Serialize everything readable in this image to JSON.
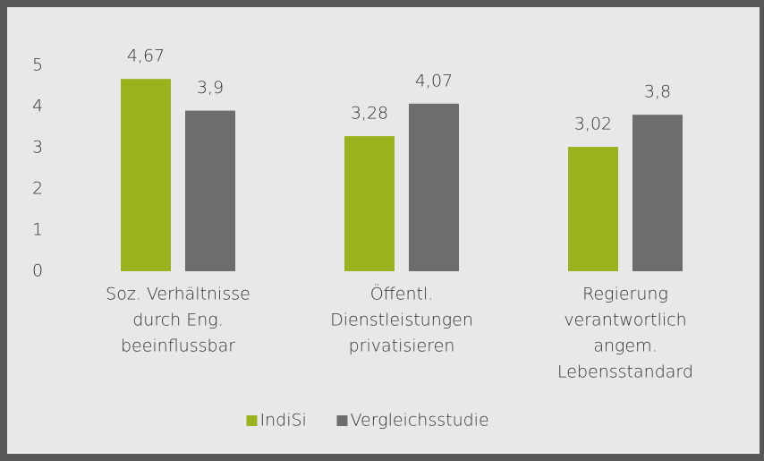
{
  "chart_data": {
    "type": "bar",
    "categories": [
      [
        "Soz. Verhältnisse",
        "durch Eng.",
        "beeinflussbar"
      ],
      [
        "Öffentl.",
        "Dienstleistungen",
        "privatisieren"
      ],
      [
        "Regierung",
        "verantwortlich",
        "angem.",
        "Lebensstandard"
      ]
    ],
    "series": [
      {
        "name": "IndiSi",
        "color": "#9bb21f",
        "values": [
          4.67,
          3.28,
          3.02
        ],
        "value_labels": [
          "4,67",
          "3,28",
          "3,02"
        ]
      },
      {
        "name": "Vergleichsstudie",
        "color": "#6e6d6b",
        "values": [
          3.9,
          4.07,
          3.8
        ],
        "value_labels": [
          "3,9",
          "4,07",
          "3,8"
        ]
      }
    ],
    "ylim": [
      0,
      5
    ],
    "yticks": [
      0,
      1,
      2,
      3,
      4,
      5
    ],
    "grid": false,
    "legend": "bottom"
  }
}
